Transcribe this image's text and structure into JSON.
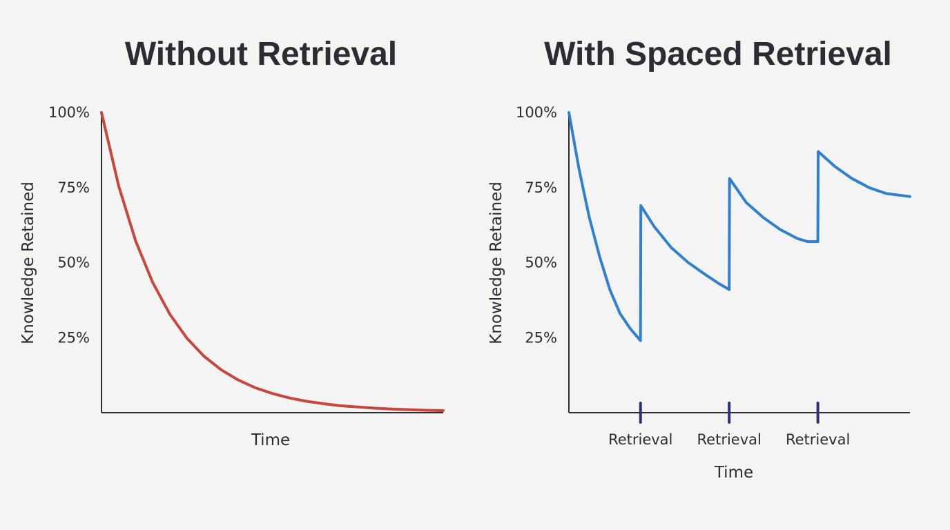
{
  "chart_data": [
    {
      "type": "line",
      "title": "Without Retrieval",
      "xlabel": "Time",
      "ylabel": "Knowledge Retained",
      "yticks": [
        "100%",
        "75%",
        "50%",
        "25%"
      ],
      "ylim": [
        0,
        100
      ],
      "xlim": [
        0,
        100
      ],
      "color": "#c9463d",
      "series": [
        {
          "x": [
            0,
            5,
            10,
            15,
            20,
            25,
            30,
            35,
            40,
            45,
            50,
            55,
            60,
            65,
            70,
            75,
            80,
            85,
            90,
            95,
            100
          ],
          "values": [
            100,
            75.6,
            57.2,
            43.3,
            32.8,
            24.8,
            18.8,
            14.3,
            10.9,
            8.3,
            6.4,
            4.9,
            3.8,
            3.0,
            2.3,
            1.9,
            1.5,
            1.2,
            1.0,
            0.8,
            0.7
          ]
        }
      ]
    },
    {
      "type": "line",
      "title": "With Spaced Retrieval",
      "xlabel": "Time",
      "ylabel": "Knowledge Retained",
      "yticks": [
        "100%",
        "75%",
        "50%",
        "25%"
      ],
      "ylim": [
        0,
        100
      ],
      "xlim": [
        0,
        100
      ],
      "color": "#2f80d0",
      "marker_color": "#2e3178",
      "retrieval_points": [
        {
          "x": 21,
          "label": "Retrieval"
        },
        {
          "x": 47,
          "label": "Retrieval"
        },
        {
          "x": 73,
          "label": "Retrieval"
        }
      ],
      "series": [
        {
          "x": [
            0,
            3,
            6,
            9,
            12,
            15,
            18,
            21,
            21.1,
            25,
            30,
            35,
            40,
            44,
            47,
            47.1,
            52,
            57,
            62,
            67,
            70,
            73,
            73.1,
            78,
            83,
            88,
            93,
            100
          ],
          "values": [
            100,
            81,
            65,
            52,
            41,
            33,
            28,
            24,
            69,
            62,
            55,
            50,
            46,
            43,
            41,
            78,
            70,
            65,
            61,
            58,
            57,
            57,
            87,
            82,
            78,
            75,
            73,
            72
          ]
        }
      ]
    }
  ]
}
